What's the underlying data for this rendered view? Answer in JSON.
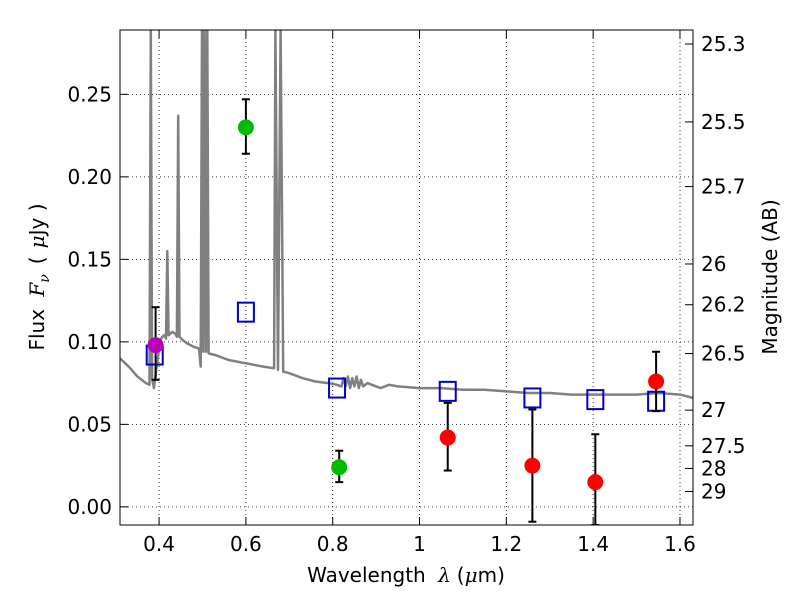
{
  "chart_data": {
    "type": "scatter",
    "xlabel": "Wavelength",
    "xlabel_symbol": "λ",
    "xlabel_unit_open": "(",
    "xlabel_unit_mu": "μ",
    "xlabel_unit_rest": "m)",
    "ylabel": "Flux",
    "ylabel_symbol": "F",
    "ylabel_symbol_sub": "ν",
    "ylabel_unit_open": "(",
    "ylabel_unit_mu": "μ",
    "ylabel_unit_rest": "Jy )",
    "ylabel_right": "Magnitude (AB)",
    "xlim": [
      0.31,
      1.63
    ],
    "ylim": [
      -0.011,
      0.289
    ],
    "grid": true,
    "x_ticks": [
      0.4,
      0.6,
      0.8,
      1.0,
      1.2,
      1.4,
      1.6
    ],
    "x_tick_labels": [
      "0.4",
      "0.6",
      "0.8",
      "1",
      "1.2",
      "1.4",
      "1.6"
    ],
    "y_ticks": [
      0.0,
      0.05,
      0.1,
      0.15,
      0.2,
      0.25
    ],
    "y_tick_labels": [
      "0.00",
      "0.05",
      "0.10",
      "0.15",
      "0.20",
      "0.25"
    ],
    "right_ticks": [
      {
        "label": "25.3",
        "flux": 0.2805
      },
      {
        "label": "25.5",
        "flux": 0.2333
      },
      {
        "label": "25.7",
        "flux": 0.1941
      },
      {
        "label": "26",
        "flux": 0.1472
      },
      {
        "label": "26.2",
        "flux": 0.1225
      },
      {
        "label": "26.5",
        "flux": 0.0929
      },
      {
        "label": "27",
        "flux": 0.0586
      },
      {
        "label": "27.5",
        "flux": 0.037
      },
      {
        "label": "28",
        "flux": 0.0233
      },
      {
        "label": "29",
        "flux": 0.0093
      }
    ],
    "series": [
      {
        "name": "model-spectrum",
        "kind": "line",
        "color": "#808080",
        "points": [
          [
            0.31,
            0.09
          ],
          [
            0.33,
            0.085
          ],
          [
            0.35,
            0.079
          ],
          [
            0.37,
            0.075
          ],
          [
            0.378,
            0.074
          ],
          [
            0.381,
            0.29
          ],
          [
            0.384,
            0.078
          ],
          [
            0.388,
            0.072
          ],
          [
            0.393,
            0.082
          ],
          [
            0.398,
            0.092
          ],
          [
            0.402,
            0.1
          ],
          [
            0.407,
            0.103
          ],
          [
            0.412,
            0.104
          ],
          [
            0.416,
            0.102
          ],
          [
            0.419,
            0.155
          ],
          [
            0.422,
            0.104
          ],
          [
            0.43,
            0.106
          ],
          [
            0.437,
            0.105
          ],
          [
            0.441,
            0.103
          ],
          [
            0.444,
            0.237
          ],
          [
            0.447,
            0.103
          ],
          [
            0.455,
            0.101
          ],
          [
            0.465,
            0.099
          ],
          [
            0.48,
            0.097
          ],
          [
            0.492,
            0.096
          ],
          [
            0.496,
            0.085
          ],
          [
            0.499,
            0.29
          ],
          [
            0.502,
            0.094
          ],
          [
            0.505,
            0.29
          ],
          [
            0.508,
            0.094
          ],
          [
            0.511,
            0.29
          ],
          [
            0.514,
            0.093
          ],
          [
            0.53,
            0.092
          ],
          [
            0.56,
            0.089
          ],
          [
            0.6,
            0.087
          ],
          [
            0.64,
            0.085
          ],
          [
            0.665,
            0.084
          ],
          [
            0.668,
            0.29
          ],
          [
            0.674,
            0.083
          ],
          [
            0.68,
            0.29
          ],
          [
            0.686,
            0.082
          ],
          [
            0.7,
            0.081
          ],
          [
            0.73,
            0.078
          ],
          [
            0.76,
            0.076
          ],
          [
            0.79,
            0.075
          ],
          [
            0.81,
            0.074
          ],
          [
            0.82,
            0.073
          ],
          [
            0.825,
            0.078
          ],
          [
            0.83,
            0.073
          ],
          [
            0.835,
            0.079
          ],
          [
            0.84,
            0.072
          ],
          [
            0.845,
            0.078
          ],
          [
            0.85,
            0.073
          ],
          [
            0.855,
            0.079
          ],
          [
            0.86,
            0.072
          ],
          [
            0.865,
            0.077
          ],
          [
            0.87,
            0.073
          ],
          [
            0.88,
            0.075
          ],
          [
            0.9,
            0.073
          ],
          [
            0.91,
            0.072
          ],
          [
            0.93,
            0.074
          ],
          [
            0.95,
            0.073
          ],
          [
            1.0,
            0.072
          ],
          [
            1.05,
            0.072
          ],
          [
            1.1,
            0.071
          ],
          [
            1.15,
            0.071
          ],
          [
            1.2,
            0.07
          ],
          [
            1.25,
            0.069
          ],
          [
            1.3,
            0.069
          ],
          [
            1.35,
            0.068
          ],
          [
            1.4,
            0.068
          ],
          [
            1.45,
            0.068
          ],
          [
            1.5,
            0.068
          ],
          [
            1.55,
            0.069
          ],
          [
            1.6,
            0.068
          ],
          [
            1.63,
            0.066
          ]
        ]
      },
      {
        "name": "model-photometry",
        "kind": "open-square",
        "color": "#0000cc",
        "points": [
          [
            0.39,
            0.092
          ],
          [
            0.6,
            0.118
          ],
          [
            0.81,
            0.072
          ],
          [
            1.065,
            0.07
          ],
          [
            1.26,
            0.066
          ],
          [
            1.405,
            0.065
          ],
          [
            1.545,
            0.064
          ]
        ]
      },
      {
        "name": "observed-green",
        "kind": "filled-circle",
        "color": "#00bb00",
        "points": [
          {
            "x": 0.6,
            "y": 0.23,
            "lo": 0.214,
            "hi": 0.247
          },
          {
            "x": 0.815,
            "y": 0.024,
            "lo": 0.015,
            "hi": 0.034
          }
        ]
      },
      {
        "name": "observed-magenta",
        "kind": "filled-circle",
        "color": "#bb00bb",
        "points": [
          {
            "x": 0.392,
            "y": 0.098,
            "lo": 0.077,
            "hi": 0.121
          }
        ]
      },
      {
        "name": "observed-red",
        "kind": "filled-circle",
        "color": "#ff0000",
        "points": [
          {
            "x": 1.065,
            "y": 0.042,
            "lo": 0.022,
            "hi": 0.063
          },
          {
            "x": 1.26,
            "y": 0.025,
            "lo": -0.009,
            "hi": 0.059
          },
          {
            "x": 1.405,
            "y": 0.015,
            "lo": -0.011,
            "hi": 0.044
          },
          {
            "x": 1.545,
            "y": 0.076,
            "lo": 0.058,
            "hi": 0.094
          }
        ]
      }
    ]
  }
}
